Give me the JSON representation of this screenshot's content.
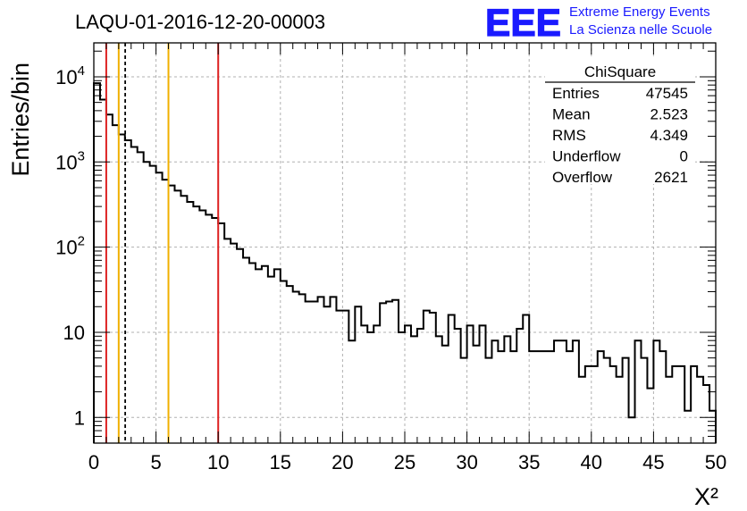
{
  "chart_data": {
    "type": "histogram",
    "title": "LAQU-01-2016-12-20-00003",
    "xlabel": "X²",
    "ylabel": "Entries/bin",
    "yscale": "log",
    "xlim": [
      0,
      50
    ],
    "ylim": [
      0.5,
      25000
    ],
    "grid": true,
    "bin_width": 0.5,
    "x_ticks": [
      "0",
      "5",
      "10",
      "15",
      "20",
      "25",
      "30",
      "35",
      "40",
      "45",
      "50"
    ],
    "y_ticks": [
      {
        "value": 1,
        "label": "1"
      },
      {
        "value": 10,
        "label": "10"
      },
      {
        "value": 100,
        "label": "10",
        "exp": "2"
      },
      {
        "value": 1000,
        "label": "10",
        "exp": "3"
      },
      {
        "value": 10000,
        "label": "10",
        "exp": "4"
      }
    ],
    "counts": [
      8400,
      5400,
      3600,
      2700,
      2100,
      1800,
      1500,
      1300,
      1000,
      900,
      750,
      620,
      530,
      460,
      400,
      340,
      300,
      270,
      240,
      220,
      190,
      125,
      110,
      95,
      75,
      65,
      55,
      60,
      45,
      55,
      40,
      35,
      30,
      28,
      23,
      23,
      26,
      20,
      26,
      18,
      18,
      8,
      20,
      12,
      10,
      12,
      22,
      23,
      24,
      10,
      12,
      9,
      11,
      18,
      17,
      9,
      7,
      16,
      11,
      5,
      12,
      7,
      12,
      5,
      8,
      6,
      9,
      6,
      11,
      16,
      6,
      6,
      6,
      6,
      8,
      8,
      6,
      8,
      3,
      4,
      4,
      6,
      5,
      4,
      3,
      5,
      1,
      8,
      5,
      2.2,
      8,
      6,
      3,
      4,
      4,
      1.2,
      4,
      3,
      2.4,
      1.2
    ],
    "vertical_lines": [
      {
        "x": 1,
        "color": "#dd2222",
        "style": "solid"
      },
      {
        "x": 2,
        "color": "#f0b000",
        "style": "solid"
      },
      {
        "x": 2.523,
        "color": "#000000",
        "style": "dashed"
      },
      {
        "x": 6,
        "color": "#f0b000",
        "style": "solid"
      },
      {
        "x": 10,
        "color": "#dd2222",
        "style": "solid"
      }
    ],
    "stats_box": {
      "title": "ChiSquare",
      "rows": [
        {
          "label": "Entries",
          "value": "47545"
        },
        {
          "label": "Mean",
          "value": "2.523"
        },
        {
          "label": "RMS",
          "value": "4.349"
        },
        {
          "label": "Underflow",
          "value": "0"
        },
        {
          "label": "Overflow",
          "value": "2621"
        }
      ]
    }
  },
  "logo": {
    "mark": "EEE",
    "line1": "Extreme Energy Events",
    "line2": "La Scienza nelle Scuole",
    "color": "#1a1aff"
  },
  "colors": {
    "histogram": "#000000",
    "grid": "#b0b0b0"
  }
}
